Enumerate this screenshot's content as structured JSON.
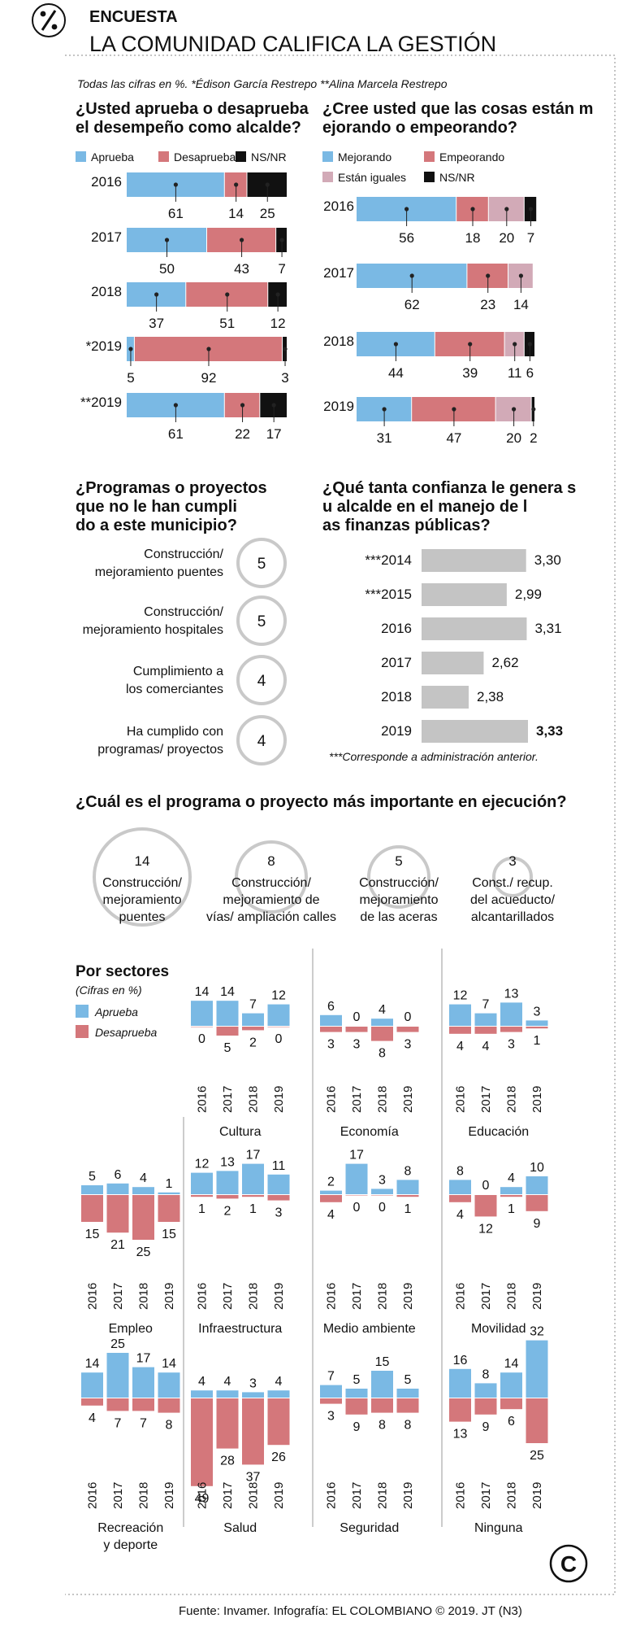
{
  "header": {
    "section": "ENCUESTA",
    "title": "LA COMUNIDAD CALIFICA LA GESTIÓN",
    "note": "Todas las cifras en %. *Édison García Restrepo **Alina Marcela Restrepo"
  },
  "colors": {
    "blue": "#7ab9e4",
    "red": "#d4777b",
    "pink": "#d2aab7",
    "black": "#111111",
    "gray": "#c4c4c4",
    "ring": "#c9c9c9",
    "frame": "#888888"
  },
  "footer": {
    "source": "Fuente: Invamer. Infografía: EL COLOMBIANO © 2019. JT (N3)",
    "logo_letter": "C"
  },
  "chart_data": [
    {
      "id": "aprueba",
      "type": "bar",
      "stacked": true,
      "orientation": "horizontal",
      "title": "¿Usted aprueba o desaprueba el desempeño como alcalde?",
      "categories": [
        "2016",
        "2017",
        "2018",
        "*2019",
        "**2019"
      ],
      "series": [
        {
          "name": "Aprueba",
          "color": "#7ab9e4",
          "values": [
            61,
            50,
            37,
            5,
            61
          ]
        },
        {
          "name": "Desaprueba",
          "color": "#d4777b",
          "values": [
            14,
            43,
            51,
            92,
            22
          ]
        },
        {
          "name": "NS/NR",
          "color": "#111111",
          "values": [
            25,
            7,
            12,
            3,
            17
          ]
        }
      ]
    },
    {
      "id": "cosas",
      "type": "bar",
      "stacked": true,
      "orientation": "horizontal",
      "title": "¿Cree usted que las cosas están mejorando o empeorando?",
      "categories": [
        "2016",
        "2017",
        "2018",
        "2019"
      ],
      "series": [
        {
          "name": "Mejorando",
          "color": "#7ab9e4",
          "values": [
            56,
            62,
            44,
            31
          ]
        },
        {
          "name": "Empeorando",
          "color": "#d4777b",
          "values": [
            18,
            23,
            39,
            47
          ]
        },
        {
          "name": "Están iguales",
          "color": "#d2aab7",
          "values": [
            20,
            14,
            11,
            20
          ]
        },
        {
          "name": "NS/NR",
          "color": "#111111",
          "values": [
            7,
            null,
            6,
            2
          ]
        }
      ]
    },
    {
      "id": "incumplidos",
      "type": "table",
      "title": "¿Programas o proyectos que no le han cumplido a este municipio?",
      "rows": [
        {
          "label_lines": [
            "Construcción/",
            "mejoramiento puentes"
          ],
          "value": 5
        },
        {
          "label_lines": [
            "Construcción/",
            "mejoramiento hospitales"
          ],
          "value": 5
        },
        {
          "label_lines": [
            "Cumplimiento a",
            "los comerciantes"
          ],
          "value": 4
        },
        {
          "label_lines": [
            "Ha cumplido con",
            "programas/ proyectos"
          ],
          "value": 4
        }
      ]
    },
    {
      "id": "confianza",
      "type": "bar",
      "orientation": "horizontal",
      "title": "¿Qué tanta confianza le genera su alcalde en el manejo de las finanzas públicas?",
      "categories": [
        "***2014",
        "***2015",
        "2016",
        "2017",
        "2018",
        "2019"
      ],
      "values": [
        3.3,
        2.99,
        3.31,
        2.62,
        2.38,
        3.33
      ],
      "value_labels": [
        "3,30",
        "2,99",
        "3,31",
        "2,62",
        "2,38",
        "3,33"
      ],
      "xlim": [
        0,
        3.33
      ],
      "note": "***Corresponde a administración anterior."
    },
    {
      "id": "importante",
      "type": "bubble",
      "title": "¿Cuál es el programa o proyecto más importante en ejecución?",
      "items": [
        {
          "value": 14,
          "label_lines": [
            "Construcción/",
            "mejoramiento",
            "puentes"
          ]
        },
        {
          "value": 8,
          "label_lines": [
            "Construcción/",
            "mejoramiento de",
            "vías/ ampliación calles"
          ]
        },
        {
          "value": 5,
          "label_lines": [
            "Construcción/",
            "mejoramiento",
            "de las aceras"
          ]
        },
        {
          "value": 3,
          "label_lines": [
            "Const./ recup.",
            "del acueducto/",
            "alcantarillados"
          ]
        }
      ]
    },
    {
      "id": "sectores",
      "type": "bar",
      "diverging": true,
      "title": "Por sectores",
      "subtitle": "(Cifras en %)",
      "legend": [
        {
          "name": "Aprueba",
          "color": "#7ab9e4"
        },
        {
          "name": "Desaprueba",
          "color": "#d4777b"
        }
      ],
      "years": [
        "2016",
        "2017",
        "2018",
        "2019"
      ],
      "panels": [
        {
          "label_lines": [
            "Cultura"
          ],
          "aprueba": [
            14,
            14,
            7,
            12
          ],
          "desaprueba": [
            0,
            5,
            2,
            0
          ]
        },
        {
          "label_lines": [
            "Economía"
          ],
          "aprueba": [
            6,
            0,
            4,
            0
          ],
          "desaprueba": [
            3,
            3,
            8,
            3
          ]
        },
        {
          "label_lines": [
            "Educación"
          ],
          "aprueba": [
            12,
            7,
            13,
            3
          ],
          "desaprueba": [
            4,
            4,
            3,
            1
          ]
        },
        {
          "label_lines": [
            "Empleo"
          ],
          "aprueba": [
            5,
            6,
            4,
            1
          ],
          "desaprueba": [
            15,
            21,
            25,
            15
          ]
        },
        {
          "label_lines": [
            "Infraestructura"
          ],
          "aprueba": [
            12,
            13,
            17,
            11
          ],
          "desaprueba": [
            1,
            2,
            1,
            3
          ]
        },
        {
          "label_lines": [
            "Medio ambiente"
          ],
          "aprueba": [
            2,
            17,
            3,
            8
          ],
          "desaprueba": [
            4,
            0,
            0,
            1
          ]
        },
        {
          "label_lines": [
            "Movilidad"
          ],
          "aprueba": [
            8,
            0,
            4,
            10
          ],
          "desaprueba": [
            4,
            12,
            1,
            9
          ]
        },
        {
          "label_lines": [
            "Recreación",
            "y deporte"
          ],
          "aprueba": [
            14,
            25,
            17,
            14
          ],
          "desaprueba": [
            4,
            7,
            7,
            8
          ]
        },
        {
          "label_lines": [
            "Salud"
          ],
          "aprueba": [
            4,
            4,
            3,
            4
          ],
          "desaprueba": [
            49,
            28,
            37,
            26
          ]
        },
        {
          "label_lines": [
            "Seguridad"
          ],
          "aprueba": [
            7,
            5,
            15,
            5
          ],
          "desaprueba": [
            3,
            9,
            8,
            8
          ]
        },
        {
          "label_lines": [
            "Ninguna"
          ],
          "aprueba": [
            16,
            8,
            14,
            32
          ],
          "desaprueba": [
            13,
            9,
            6,
            25
          ]
        }
      ]
    }
  ]
}
